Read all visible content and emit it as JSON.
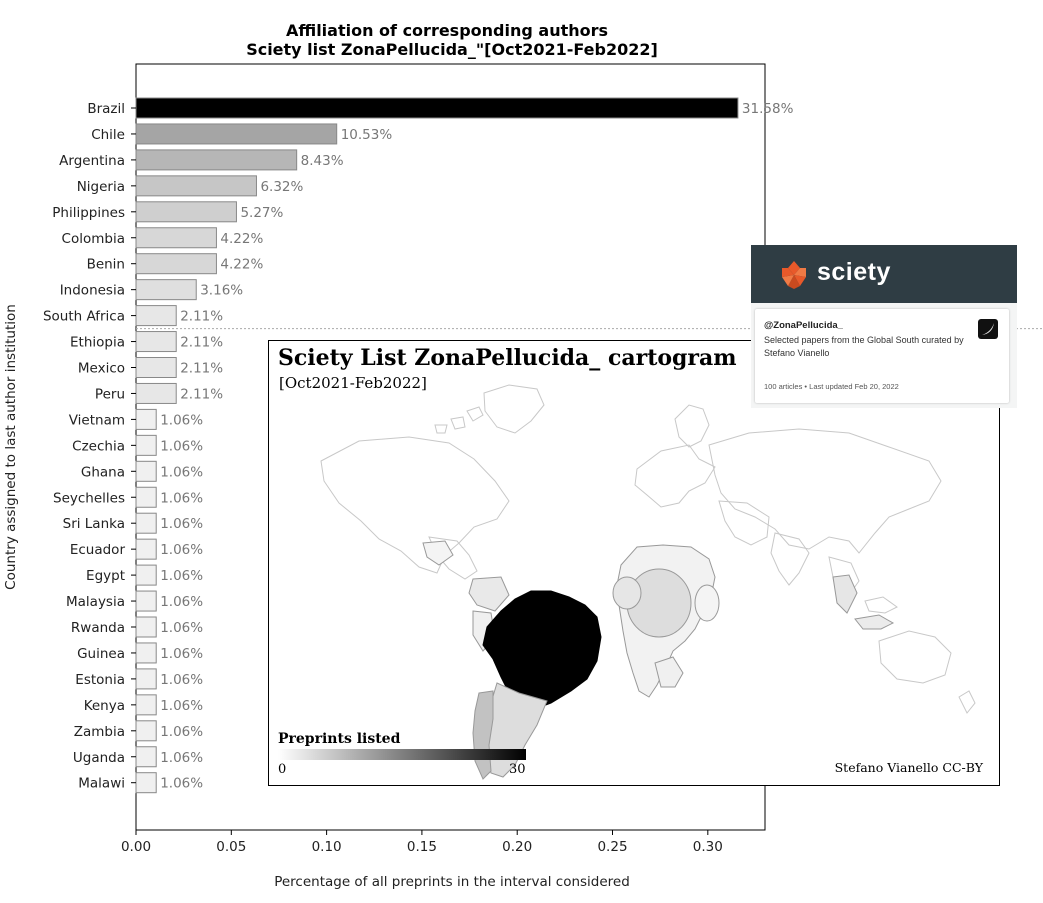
{
  "chart_data": {
    "type": "bar",
    "orientation": "horizontal",
    "title": "Affiliation of corresponding authors",
    "subtitle": "Sciety list ZonaPellucida_\"[Oct2021-Feb2022]",
    "xlabel": "Percentage of all preprints in the interval considered",
    "ylabel": "Country assigned to last author institution",
    "xlim": [
      0,
      0.33
    ],
    "xticks": [
      "0.00",
      "0.05",
      "0.10",
      "0.15",
      "0.20",
      "0.25",
      "0.30"
    ],
    "categories": [
      "Brazil",
      "Chile",
      "Argentina",
      "Nigeria",
      "Philippines",
      "Colombia",
      "Benin",
      "Indonesia",
      "South Africa",
      "Ethiopia",
      "Mexico",
      "Peru",
      "Vietnam",
      "Czechia",
      "Ghana",
      "Seychelles",
      "Sri Lanka",
      "Ecuador",
      "Egypt",
      "Malaysia",
      "Rwanda",
      "Guinea",
      "Estonia",
      "Kenya",
      "Zambia",
      "Uganda",
      "Malawi"
    ],
    "values": [
      0.3158,
      0.1053,
      0.0843,
      0.0632,
      0.0527,
      0.0422,
      0.0422,
      0.0316,
      0.0211,
      0.0211,
      0.0211,
      0.0211,
      0.0106,
      0.0106,
      0.0106,
      0.0106,
      0.0106,
      0.0106,
      0.0106,
      0.0106,
      0.0106,
      0.0106,
      0.0106,
      0.0106,
      0.0106,
      0.0106,
      0.0106
    ],
    "labels": [
      "31.58%",
      "10.53%",
      "8.43%",
      "6.32%",
      "5.27%",
      "4.22%",
      "4.22%",
      "3.16%",
      "2.11%",
      "2.11%",
      "2.11%",
      "2.11%",
      "1.06%",
      "1.06%",
      "1.06%",
      "1.06%",
      "1.06%",
      "1.06%",
      "1.06%",
      "1.06%",
      "1.06%",
      "1.06%",
      "1.06%",
      "1.06%",
      "1.06%",
      "1.06%",
      "1.06%"
    ],
    "divider_after": "South Africa",
    "grid": false
  },
  "cartogram": {
    "title": "Sciety List ZonaPellucida_ cartogram",
    "subtitle": "[Oct2021-Feb2022]",
    "legend_title": "Preprints listed",
    "legend_min": "0",
    "legend_max": "30",
    "credit": "Stefano Vianello CC-BY"
  },
  "sciety_card": {
    "brand": "sciety",
    "handle": "@ZonaPellucida_",
    "description": "Selected papers from the Global South curated by Stefano Vianello",
    "meta": "100 articles • Last updated Feb 20, 2022",
    "header_color": "#2f3d44",
    "logo_color": "#e8592a"
  }
}
